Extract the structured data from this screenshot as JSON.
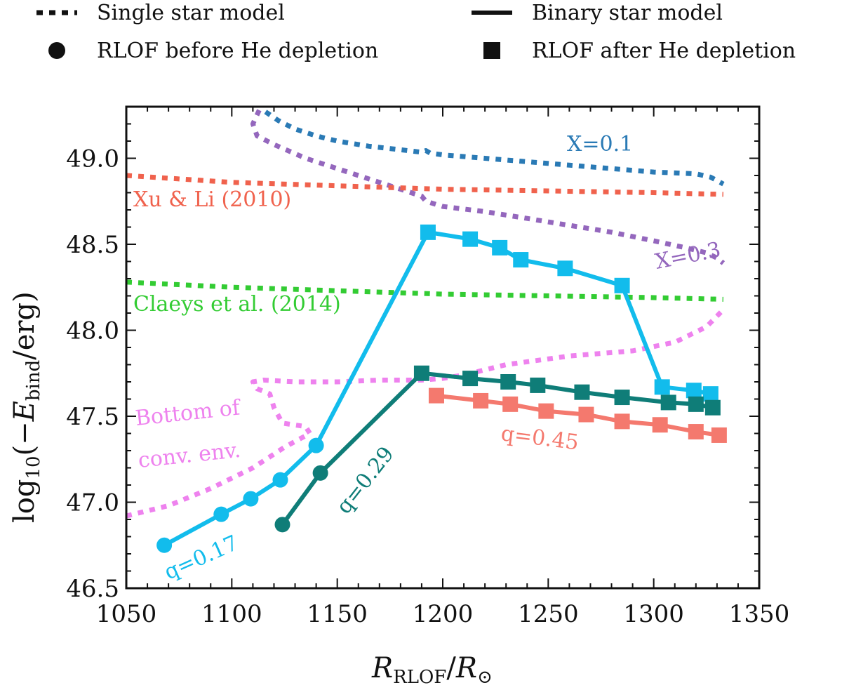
{
  "chart_data": {
    "type": "line",
    "xlabel": "R_RLOF / R_⊙",
    "ylabel": "log10(−E_bind / erg)",
    "xlabel_parts": {
      "main": "R",
      "sub": "RLOF",
      "slash": "/",
      "main2": "R",
      "sub2": "⊙"
    },
    "ylabel_parts": {
      "fn": "log",
      "fn_sub": "10",
      "open": "(−",
      "var": "E",
      "var_sub": "bind",
      "close": "/erg)"
    },
    "xlim": [
      1050,
      1350
    ],
    "ylim": [
      46.5,
      49.3
    ],
    "xticks": [
      {
        "value": 1050,
        "label": "1050"
      },
      {
        "value": 1100,
        "label": "1100"
      },
      {
        "value": 1150,
        "label": "1150"
      },
      {
        "value": 1200,
        "label": "1200"
      },
      {
        "value": 1250,
        "label": "1250"
      },
      {
        "value": 1300,
        "label": "1300"
      },
      {
        "value": 1350,
        "label": "1350"
      }
    ],
    "yticks": [
      {
        "value": 46.5,
        "label": "46.5"
      },
      {
        "value": 47.0,
        "label": "47.0"
      },
      {
        "value": 47.5,
        "label": "47.5"
      },
      {
        "value": 48.0,
        "label": "48.0"
      },
      {
        "value": 48.5,
        "label": "48.5"
      },
      {
        "value": 49.0,
        "label": "49.0"
      }
    ],
    "legend": {
      "placement": "top, outside plot",
      "entries": [
        {
          "label": "Single star model",
          "marker": "dotted-line"
        },
        {
          "label": "Binary star model",
          "marker": "solid-line"
        },
        {
          "label": "RLOF before He depletion",
          "marker": "circle"
        },
        {
          "label": "RLOF after He depletion",
          "marker": "square"
        }
      ]
    },
    "single_star_series": [
      {
        "name": "X=0.1",
        "label": "X=0.1",
        "color": "#2a7ab5",
        "x": [
          1116,
          1122,
          1130,
          1140,
          1150,
          1165,
          1180,
          1190,
          1192,
          1194,
          1200,
          1220,
          1240,
          1260,
          1280,
          1300,
          1320,
          1327,
          1330,
          1333
        ],
        "y": [
          49.27,
          49.22,
          49.17,
          49.13,
          49.1,
          49.07,
          49.05,
          49.035,
          49.045,
          49.03,
          49.02,
          49.0,
          48.98,
          48.96,
          48.94,
          48.92,
          48.91,
          48.89,
          48.87,
          48.85
        ]
      },
      {
        "name": "X=0.3",
        "label": "X=0.3",
        "color": "#9467bd",
        "x": [
          1113,
          1110,
          1112,
          1120,
          1135,
          1150,
          1165,
          1180,
          1190,
          1192,
          1200,
          1220,
          1240,
          1260,
          1280,
          1300,
          1315,
          1325,
          1330,
          1333
        ],
        "y": [
          49.28,
          49.2,
          49.13,
          49.08,
          49.0,
          48.94,
          48.88,
          48.82,
          48.78,
          48.75,
          48.72,
          48.69,
          48.65,
          48.61,
          48.57,
          48.52,
          48.48,
          48.45,
          48.42,
          48.39
        ]
      },
      {
        "name": "Xu & Li (2010)",
        "label": "Xu & Li (2010)",
        "color": "#f0624d",
        "x": [
          1050,
          1100,
          1150,
          1200,
          1250,
          1300,
          1333
        ],
        "y": [
          48.9,
          48.86,
          48.84,
          48.82,
          48.81,
          48.8,
          48.79
        ]
      },
      {
        "name": "Claeys et al. (2014)",
        "label": "Claeys et al. (2014)",
        "color": "#33cc33",
        "x": [
          1050,
          1100,
          1150,
          1200,
          1250,
          1300,
          1333
        ],
        "y": [
          48.28,
          48.25,
          48.23,
          48.21,
          48.2,
          48.19,
          48.18
        ],
        "line2": [
          "Claeys et al. (2014)"
        ]
      },
      {
        "name": "Bottom of conv. env.",
        "label_lines": [
          "Bottom of",
          "conv. env."
        ],
        "color": "#ee82ee",
        "x": [
          1050,
          1070,
          1090,
          1110,
          1125,
          1137,
          1135,
          1124,
          1120,
          1118,
          1112,
          1110,
          1115,
          1130,
          1150,
          1170,
          1190,
          1200,
          1210,
          1230,
          1260,
          1290,
          1310,
          1325,
          1333
        ],
        "y": [
          46.92,
          46.98,
          47.08,
          47.2,
          47.32,
          47.4,
          47.44,
          47.46,
          47.55,
          47.63,
          47.66,
          47.7,
          47.71,
          47.7,
          47.7,
          47.71,
          47.71,
          47.72,
          47.74,
          47.8,
          47.85,
          47.88,
          47.93,
          48.02,
          48.12
        ]
      }
    ],
    "binary_star_series": [
      {
        "name": "q=0.17",
        "label": "q=0.17",
        "color": "#12bcec",
        "before_he": {
          "x": [
            1068,
            1095,
            1109,
            1123,
            1140
          ],
          "y": [
            46.75,
            46.93,
            47.02,
            47.13,
            47.33
          ]
        },
        "after_he": {
          "x": [
            1193,
            1213,
            1227,
            1237,
            1258,
            1285,
            1304,
            1319,
            1327
          ],
          "y": [
            48.57,
            48.53,
            48.48,
            48.41,
            48.36,
            48.26,
            47.67,
            47.65,
            47.63
          ]
        }
      },
      {
        "name": "q=0.29",
        "label": "q=0.29",
        "color": "#0f7d78",
        "before_he": {
          "x": [
            1124,
            1142
          ],
          "y": [
            46.87,
            47.17
          ]
        },
        "after_he": {
          "x": [
            1190,
            1213,
            1231,
            1245,
            1266,
            1285,
            1307,
            1320,
            1328
          ],
          "y": [
            47.75,
            47.72,
            47.7,
            47.68,
            47.64,
            47.61,
            47.58,
            47.57,
            47.55
          ]
        }
      },
      {
        "name": "q=0.45",
        "label": "q=0.45",
        "color": "#f4796e",
        "before_he": {
          "x": [],
          "y": []
        },
        "after_he": {
          "x": [
            1197,
            1218,
            1232,
            1249,
            1268,
            1285,
            1303,
            1320,
            1331
          ],
          "y": [
            47.62,
            47.59,
            47.57,
            47.53,
            47.51,
            47.47,
            47.45,
            47.41,
            47.39
          ]
        }
      }
    ]
  }
}
